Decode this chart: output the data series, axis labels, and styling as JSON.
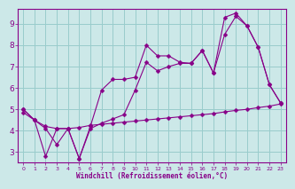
{
  "bg_color": "#cce8e8",
  "grid_color": "#99cccc",
  "line_color": "#880088",
  "xlabel": "Windchill (Refroidissement éolien,°C)",
  "xlim": [
    -0.5,
    23.5
  ],
  "ylim": [
    2.5,
    9.7
  ],
  "yticks": [
    3,
    4,
    5,
    6,
    7,
    8,
    9
  ],
  "xticks": [
    0,
    1,
    2,
    3,
    4,
    5,
    6,
    7,
    8,
    9,
    10,
    11,
    12,
    13,
    14,
    15,
    16,
    17,
    18,
    19,
    20,
    21,
    22,
    23
  ],
  "line1_x": [
    0,
    1,
    2,
    3,
    4,
    5,
    6,
    7,
    8,
    9,
    10,
    11,
    12,
    13,
    14,
    15,
    16,
    17,
    18,
    19,
    20,
    21,
    22,
    23
  ],
  "line1_y": [
    5.0,
    4.5,
    2.8,
    4.1,
    4.1,
    2.7,
    4.2,
    5.9,
    6.4,
    6.4,
    6.5,
    8.0,
    7.5,
    7.5,
    7.2,
    7.15,
    7.75,
    6.7,
    9.3,
    9.5,
    8.9,
    7.9,
    6.15,
    5.3
  ],
  "line2_x": [
    0,
    1,
    2,
    3,
    4,
    5,
    6,
    7,
    8,
    9,
    10,
    11,
    12,
    13,
    14,
    15,
    16,
    17,
    18,
    19,
    20,
    21,
    22,
    23
  ],
  "line2_y": [
    5.0,
    4.5,
    4.1,
    3.35,
    4.1,
    2.7,
    4.1,
    4.35,
    4.55,
    4.75,
    5.9,
    7.2,
    6.8,
    7.0,
    7.15,
    7.15,
    7.75,
    6.7,
    8.5,
    9.35,
    8.9,
    7.9,
    6.15,
    5.3
  ],
  "line3_x": [
    0,
    1,
    2,
    3,
    4,
    5,
    6,
    7,
    8,
    9,
    10,
    11,
    12,
    13,
    14,
    15,
    16,
    17,
    18,
    19,
    20,
    21,
    22,
    23
  ],
  "line3_y": [
    4.85,
    4.5,
    4.2,
    4.1,
    4.1,
    4.15,
    4.25,
    4.3,
    4.35,
    4.4,
    4.45,
    4.5,
    4.55,
    4.6,
    4.65,
    4.7,
    4.75,
    4.8,
    4.88,
    4.95,
    5.0,
    5.08,
    5.15,
    5.25
  ]
}
